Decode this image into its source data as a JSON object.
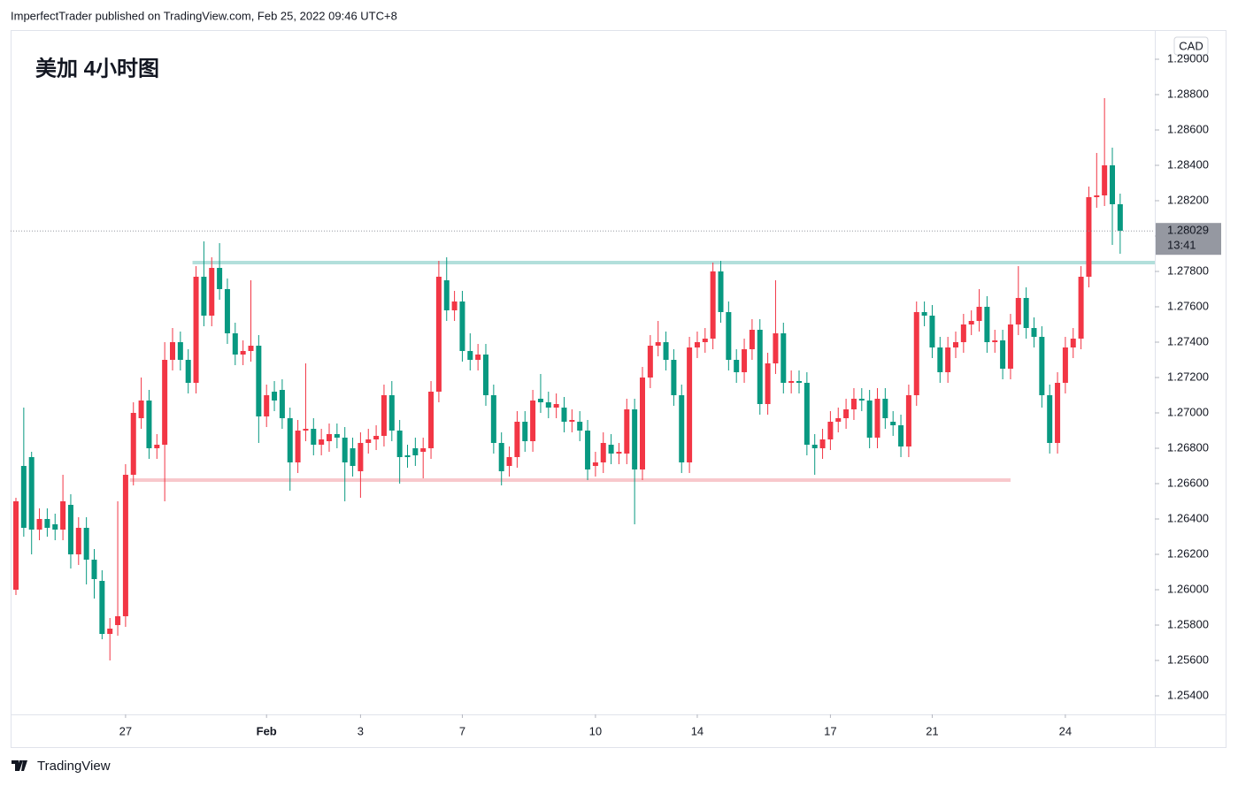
{
  "header": {
    "publisher": "ImperfectTrader published on TradingView.com, Feb 25, 2022 09:46 UTC+8",
    "footer": "TradingView"
  },
  "chart_data": {
    "type": "candlestick",
    "title": "美加 4小时图",
    "currency": "CAD",
    "up_color": "#f23645",
    "down_color": "#089981",
    "ylim": [
      1.25295,
      1.2916
    ],
    "yticks": [
      {
        "value": 1.254,
        "label": "1.25400"
      },
      {
        "value": 1.256,
        "label": "1.25600"
      },
      {
        "value": 1.258,
        "label": "1.25800"
      },
      {
        "value": 1.26,
        "label": "1.26000"
      },
      {
        "value": 1.262,
        "label": "1.26200"
      },
      {
        "value": 1.264,
        "label": "1.26400"
      },
      {
        "value": 1.266,
        "label": "1.26600"
      },
      {
        "value": 1.268,
        "label": "1.26800"
      },
      {
        "value": 1.27,
        "label": "1.27000"
      },
      {
        "value": 1.272,
        "label": "1.27200"
      },
      {
        "value": 1.274,
        "label": "1.27400"
      },
      {
        "value": 1.276,
        "label": "1.27600"
      },
      {
        "value": 1.278,
        "label": "1.27800"
      },
      {
        "value": 1.28,
        "label": "1.28000"
      },
      {
        "value": 1.282,
        "label": "1.28200"
      },
      {
        "value": 1.284,
        "label": "1.28400"
      },
      {
        "value": 1.286,
        "label": "1.28600"
      },
      {
        "value": 1.288,
        "label": "1.28800"
      },
      {
        "value": 1.29,
        "label": "1.29000"
      }
    ],
    "xticks": [
      {
        "value": 14,
        "label": "27"
      },
      {
        "value": 32,
        "label": "Feb"
      },
      {
        "value": 44,
        "label": "3"
      },
      {
        "value": 57,
        "label": "7"
      },
      {
        "value": 74,
        "label": "10"
      },
      {
        "value": 87,
        "label": "14"
      },
      {
        "value": 104,
        "label": "17"
      },
      {
        "value": 117,
        "label": "21"
      },
      {
        "value": 134,
        "label": "24"
      }
    ],
    "last_price": 1.28029,
    "last_price_time": "13:41",
    "levels": [
      {
        "value": 1.2785,
        "color": "#b2dfdb",
        "start": 23
      },
      {
        "value": 1.2662,
        "color": "#f8c8cc",
        "start": 15,
        "end": 127
      }
    ],
    "ohlc": [
      [
        1.26,
        1.2652,
        1.2597,
        1.265
      ],
      [
        1.267,
        1.2703,
        1.263,
        1.2635
      ],
      [
        1.2675,
        1.2678,
        1.262,
        1.2634
      ],
      [
        1.2634,
        1.2646,
        1.2628,
        1.264
      ],
      [
        1.264,
        1.2646,
        1.263,
        1.2635
      ],
      [
        1.2637,
        1.2643,
        1.2628,
        1.2634
      ],
      [
        1.2634,
        1.2665,
        1.2628,
        1.265
      ],
      [
        1.2648,
        1.2654,
        1.2612,
        1.262
      ],
      [
        1.262,
        1.2641,
        1.2614,
        1.2635
      ],
      [
        1.2635,
        1.2641,
        1.2603,
        1.2617
      ],
      [
        1.2617,
        1.2623,
        1.2595,
        1.2606
      ],
      [
        1.2605,
        1.2611,
        1.2572,
        1.2575
      ],
      [
        1.2575,
        1.2584,
        1.256,
        1.2578
      ],
      [
        1.258,
        1.265,
        1.2574,
        1.2585
      ],
      [
        1.2585,
        1.2671,
        1.2579,
        1.2665
      ],
      [
        1.2665,
        1.2706,
        1.2659,
        1.27
      ],
      [
        1.2697,
        1.272,
        1.2691,
        1.2707
      ],
      [
        1.2707,
        1.2713,
        1.2674,
        1.268
      ],
      [
        1.268,
        1.2688,
        1.2674,
        1.2682
      ],
      [
        1.2682,
        1.274,
        1.265,
        1.273
      ],
      [
        1.273,
        1.2748,
        1.2724,
        1.274
      ],
      [
        1.274,
        1.2746,
        1.2724,
        1.273
      ],
      [
        1.273,
        1.2736,
        1.2711,
        1.2717
      ],
      [
        1.2717,
        1.2783,
        1.2711,
        1.2777
      ],
      [
        1.2777,
        1.2797,
        1.2749,
        1.2755
      ],
      [
        1.2755,
        1.2788,
        1.2749,
        1.2782
      ],
      [
        1.2782,
        1.2796,
        1.2764,
        1.277
      ],
      [
        1.277,
        1.2776,
        1.2739,
        1.2745
      ],
      [
        1.2745,
        1.2751,
        1.2727,
        1.2733
      ],
      [
        1.2733,
        1.2741,
        1.2727,
        1.2735
      ],
      [
        1.2735,
        1.2775,
        1.2729,
        1.2738
      ],
      [
        1.2738,
        1.2744,
        1.2683,
        1.2698
      ],
      [
        1.2698,
        1.2716,
        1.2692,
        1.271
      ],
      [
        1.2712,
        1.2718,
        1.2701,
        1.2707
      ],
      [
        1.2713,
        1.2719,
        1.2691,
        1.2697
      ],
      [
        1.2697,
        1.2703,
        1.2656,
        1.2672
      ],
      [
        1.2672,
        1.2696,
        1.2666,
        1.269
      ],
      [
        1.269,
        1.2728,
        1.2684,
        1.2691
      ],
      [
        1.2691,
        1.2697,
        1.2676,
        1.2682
      ],
      [
        1.2682,
        1.2691,
        1.2676,
        1.2685
      ],
      [
        1.2684,
        1.2694,
        1.2678,
        1.2688
      ],
      [
        1.2688,
        1.2694,
        1.268,
        1.2686
      ],
      [
        1.2686,
        1.2692,
        1.265,
        1.2672
      ],
      [
        1.268,
        1.2686,
        1.2664,
        1.267
      ],
      [
        1.2667,
        1.2689,
        1.2652,
        1.2683
      ],
      [
        1.2683,
        1.2691,
        1.2677,
        1.2685
      ],
      [
        1.2685,
        1.2693,
        1.2679,
        1.2687
      ],
      [
        1.2687,
        1.2716,
        1.2681,
        1.271
      ],
      [
        1.271,
        1.2718,
        1.2684,
        1.269
      ],
      [
        1.269,
        1.2696,
        1.266,
        1.2675
      ],
      [
        1.2676,
        1.2682,
        1.2669,
        1.2675
      ],
      [
        1.268,
        1.2686,
        1.267,
        1.2676
      ],
      [
        1.2678,
        1.2686,
        1.2663,
        1.268
      ],
      [
        1.268,
        1.2718,
        1.2674,
        1.2712
      ],
      [
        1.2712,
        1.2786,
        1.2706,
        1.2777
      ],
      [
        1.2775,
        1.2788,
        1.2752,
        1.2758
      ],
      [
        1.2758,
        1.2769,
        1.2752,
        1.2763
      ],
      [
        1.2763,
        1.2769,
        1.2729,
        1.2735
      ],
      [
        1.2735,
        1.2745,
        1.2724,
        1.273
      ],
      [
        1.273,
        1.2739,
        1.2724,
        1.2733
      ],
      [
        1.2733,
        1.2739,
        1.2704,
        1.271
      ],
      [
        1.271,
        1.2716,
        1.2677,
        1.2683
      ],
      [
        1.2683,
        1.2689,
        1.2659,
        1.2667
      ],
      [
        1.267,
        1.2681,
        1.2664,
        1.2675
      ],
      [
        1.2675,
        1.2701,
        1.2669,
        1.2695
      ],
      [
        1.2695,
        1.2701,
        1.2678,
        1.2684
      ],
      [
        1.2684,
        1.2713,
        1.2678,
        1.2707
      ],
      [
        1.2708,
        1.2722,
        1.27,
        1.2706
      ],
      [
        1.2706,
        1.2712,
        1.2697,
        1.2703
      ],
      [
        1.2703,
        1.2711,
        1.2697,
        1.2705
      ],
      [
        1.2703,
        1.2709,
        1.2689,
        1.2695
      ],
      [
        1.2695,
        1.2702,
        1.2689,
        1.2696
      ],
      [
        1.2695,
        1.2701,
        1.2684,
        1.269
      ],
      [
        1.269,
        1.2696,
        1.2662,
        1.2668
      ],
      [
        1.267,
        1.2678,
        1.2664,
        1.2672
      ],
      [
        1.2672,
        1.2689,
        1.2666,
        1.2683
      ],
      [
        1.2682,
        1.2688,
        1.2671,
        1.2677
      ],
      [
        1.2677,
        1.2683,
        1.2671,
        1.2678
      ],
      [
        1.2677,
        1.2708,
        1.2671,
        1.2702
      ],
      [
        1.2702,
        1.2708,
        1.2637,
        1.2668
      ],
      [
        1.2668,
        1.2726,
        1.2662,
        1.272
      ],
      [
        1.272,
        1.2744,
        1.2714,
        1.2738
      ],
      [
        1.2738,
        1.2752,
        1.2732,
        1.274
      ],
      [
        1.274,
        1.2746,
        1.2724,
        1.273
      ],
      [
        1.273,
        1.2736,
        1.2704,
        1.271
      ],
      [
        1.271,
        1.2716,
        1.2666,
        1.2672
      ],
      [
        1.2672,
        1.2743,
        1.2666,
        1.2737
      ],
      [
        1.2737,
        1.2746,
        1.2731,
        1.274
      ],
      [
        1.274,
        1.2748,
        1.2734,
        1.2742
      ],
      [
        1.2742,
        1.2785,
        1.2736,
        1.278
      ],
      [
        1.278,
        1.2786,
        1.2751,
        1.2757
      ],
      [
        1.2757,
        1.2763,
        1.2724,
        1.273
      ],
      [
        1.273,
        1.2736,
        1.2717,
        1.2723
      ],
      [
        1.2723,
        1.2742,
        1.2717,
        1.2736
      ],
      [
        1.2736,
        1.2753,
        1.273,
        1.2747
      ],
      [
        1.2747,
        1.2753,
        1.2699,
        1.2705
      ],
      [
        1.2705,
        1.2734,
        1.2699,
        1.2728
      ],
      [
        1.2728,
        1.2775,
        1.2722,
        1.2745
      ],
      [
        1.2745,
        1.2751,
        1.2711,
        1.2717
      ],
      [
        1.2717,
        1.2724,
        1.2711,
        1.2718
      ],
      [
        1.2718,
        1.2724,
        1.2711,
        1.2717
      ],
      [
        1.2717,
        1.2723,
        1.2676,
        1.2682
      ],
      [
        1.2682,
        1.2688,
        1.2665,
        1.268
      ],
      [
        1.268,
        1.2691,
        1.2674,
        1.2685
      ],
      [
        1.2685,
        1.2701,
        1.2679,
        1.2695
      ],
      [
        1.2695,
        1.2703,
        1.2689,
        1.2697
      ],
      [
        1.2697,
        1.2708,
        1.2691,
        1.2702
      ],
      [
        1.2702,
        1.2714,
        1.2696,
        1.2708
      ],
      [
        1.2708,
        1.2714,
        1.2701,
        1.2707
      ],
      [
        1.2707,
        1.2713,
        1.268,
        1.2686
      ],
      [
        1.2686,
        1.2714,
        1.268,
        1.2708
      ],
      [
        1.2708,
        1.2714,
        1.2691,
        1.2697
      ],
      [
        1.2695,
        1.2701,
        1.2687,
        1.2693
      ],
      [
        1.2693,
        1.2699,
        1.2675,
        1.2681
      ],
      [
        1.2681,
        1.2716,
        1.2675,
        1.271
      ],
      [
        1.271,
        1.2763,
        1.2704,
        1.2757
      ],
      [
        1.2757,
        1.2763,
        1.2749,
        1.2755
      ],
      [
        1.2755,
        1.2761,
        1.2731,
        1.2737
      ],
      [
        1.2737,
        1.2743,
        1.2717,
        1.2723
      ],
      [
        1.2723,
        1.2743,
        1.2717,
        1.2737
      ],
      [
        1.2737,
        1.2746,
        1.2731,
        1.274
      ],
      [
        1.274,
        1.2756,
        1.2734,
        1.275
      ],
      [
        1.275,
        1.2758,
        1.2744,
        1.2752
      ],
      [
        1.2752,
        1.277,
        1.2746,
        1.276
      ],
      [
        1.276,
        1.2766,
        1.2734,
        1.274
      ],
      [
        1.274,
        1.2747,
        1.2734,
        1.2741
      ],
      [
        1.2741,
        1.2747,
        1.2719,
        1.2725
      ],
      [
        1.2725,
        1.2756,
        1.2719,
        1.275
      ],
      [
        1.275,
        1.2783,
        1.2744,
        1.2765
      ],
      [
        1.2765,
        1.2771,
        1.2742,
        1.2748
      ],
      [
        1.2748,
        1.2754,
        1.2737,
        1.2743
      ],
      [
        1.2743,
        1.2749,
        1.2703,
        1.271
      ],
      [
        1.271,
        1.2716,
        1.2677,
        1.2683
      ],
      [
        1.2683,
        1.2723,
        1.2677,
        1.2717
      ],
      [
        1.2717,
        1.2743,
        1.2711,
        1.2737
      ],
      [
        1.2737,
        1.2748,
        1.2731,
        1.2742
      ],
      [
        1.2742,
        1.2783,
        1.2736,
        1.2777
      ],
      [
        1.2777,
        1.2828,
        1.2771,
        1.2822
      ],
      [
        1.2822,
        1.2847,
        1.2816,
        1.2823
      ],
      [
        1.2823,
        1.2878,
        1.2817,
        1.284
      ],
      [
        1.284,
        1.285,
        1.2795,
        1.2818
      ],
      [
        1.2818,
        1.2824,
        1.279,
        1.2803
      ]
    ]
  }
}
